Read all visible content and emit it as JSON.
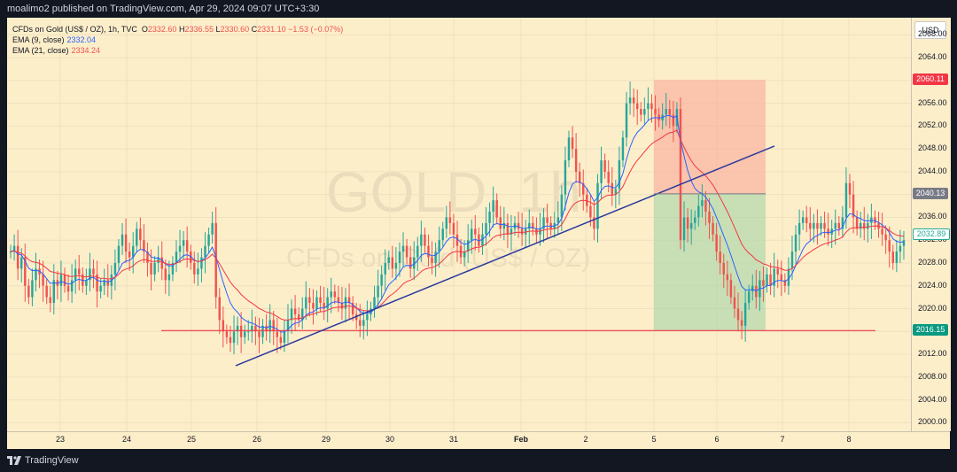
{
  "header": {
    "publish_text": "moalimo2 published on TradingView.com, Apr 29, 2024 09:07 UTC+3:30"
  },
  "legend": {
    "symbol": "CFDs on Gold (US$ / OZ), 1h, TVC",
    "o_label": "O",
    "o_value": "2332.60",
    "h_label": "H",
    "h_value": "2336.55",
    "l_label": "L",
    "l_value": "2330.60",
    "c_label": "C",
    "c_value": "2331.10",
    "change": "−1.53 (−0.07%)",
    "ema9_label": "EMA (9, close)",
    "ema9_value": "2332.04",
    "ema21_label": "EMA (21, close)",
    "ema21_value": "2334.24"
  },
  "currency_button": "USD",
  "watermark": {
    "ticker": "GOLD, 1h",
    "description": "CFDs on Gold (US$ / OZ)"
  },
  "price_axis": {
    "ticks": [
      "2068.00",
      "2064.00",
      "2060.00",
      "2056.00",
      "2052.00",
      "2048.00",
      "2044.00",
      "2040.00",
      "2036.00",
      "2032.00",
      "2028.00",
      "2024.00",
      "2020.00",
      "2016.00",
      "2012.00",
      "2008.00",
      "2004.00",
      "2000.00"
    ],
    "badges": [
      {
        "label": "2060.11",
        "color": "#f23645"
      },
      {
        "label": "2040.13",
        "color": "#787b86"
      },
      {
        "label": "2032.89",
        "color": "#22ab94"
      },
      {
        "label": "2016.15",
        "color": "#089981"
      }
    ]
  },
  "time_axis": {
    "ticks": [
      "23",
      "24",
      "25",
      "26",
      "29",
      "30",
      "31",
      "Feb",
      "2",
      "5",
      "6",
      "7",
      "8"
    ]
  },
  "footer": {
    "brand": "TradingView"
  },
  "colors": {
    "background": "#fdeeca",
    "up": "#26a69a",
    "down": "#ef5350",
    "ema9": "#2962ff",
    "ema21": "#f23645",
    "trendline": "#2b3a9e",
    "support": "#f23645",
    "stop_zone": "#f8a99a",
    "target_zone": "#a5d6a7"
  },
  "chart_data": {
    "type": "candlestick",
    "timeframe": "1h",
    "y_range": [
      1998.5,
      2071
    ],
    "annotations": {
      "support_level": 2016.15,
      "short_position": {
        "entry": 2040.13,
        "stop": 2060.11,
        "target": 2016.15
      },
      "trendline": {
        "from": 2010.0,
        "to": 2048.5
      }
    },
    "closes": [
      2030,
      2031,
      2027,
      2029,
      2024,
      2022,
      2025,
      2027,
      2026,
      2024,
      2022,
      2021,
      2025,
      2024,
      2026,
      2024,
      2023,
      2025,
      2027,
      2026,
      2024,
      2025,
      2027,
      2026,
      2023,
      2024,
      2025,
      2024,
      2026,
      2028,
      2031,
      2033,
      2030,
      2029,
      2031,
      2034,
      2032,
      2030,
      2028,
      2026,
      2028,
      2029,
      2027,
      2025,
      2026,
      2028,
      2030,
      2031,
      2032,
      2030,
      2028,
      2026,
      2027,
      2029,
      2031,
      2033,
      2035,
      2022,
      2018,
      2016,
      2015,
      2014,
      2016,
      2017,
      2015,
      2016,
      2016,
      2017,
      2016,
      2015,
      2017,
      2016,
      2018,
      2016,
      2015,
      2014,
      2016,
      2018,
      2020,
      2019,
      2018,
      2020,
      2022,
      2021,
      2020,
      2022,
      2021,
      2020,
      2022,
      2023,
      2022,
      2021,
      2020,
      2022,
      2021,
      2019,
      2018,
      2017,
      2018,
      2019,
      2020,
      2022,
      2024,
      2026,
      2028,
      2029,
      2027,
      2028,
      2030,
      2031,
      2029,
      2027,
      2029,
      2031,
      2033,
      2031,
      2029,
      2028,
      2030,
      2032,
      2034,
      2036,
      2035,
      2033,
      2031,
      2029,
      2030,
      2032,
      2034,
      2033,
      2031,
      2033,
      2035,
      2037,
      2039,
      2036,
      2034,
      2035,
      2033,
      2034,
      2035,
      2034,
      2033,
      2034,
      2035,
      2034,
      2033,
      2034,
      2036,
      2035,
      2034,
      2035,
      2036,
      2040,
      2046,
      2050,
      2048,
      2044,
      2042,
      2040,
      2038,
      2036,
      2034,
      2042,
      2046,
      2044,
      2042,
      2040,
      2041,
      2046,
      2050,
      2056,
      2057,
      2056,
      2055,
      2054,
      2055,
      2056,
      2055,
      2054,
      2053,
      2054,
      2055,
      2054,
      2052,
      2055,
      2032,
      2036,
      2034,
      2035,
      2036,
      2038,
      2039,
      2037,
      2035,
      2033,
      2030,
      2028,
      2026,
      2025,
      2022,
      2020,
      2018,
      2017,
      2021,
      2023,
      2024,
      2022,
      2025,
      2024,
      2026,
      2024,
      2027,
      2026,
      2025,
      2024,
      2027,
      2030,
      2033,
      2035,
      2036,
      2035,
      2034,
      2035,
      2034,
      2035,
      2034,
      2033,
      2034,
      2035,
      2034,
      2036,
      2042,
      2040,
      2036,
      2034,
      2035,
      2034,
      2035,
      2036,
      2035,
      2034,
      2033,
      2032,
      2030,
      2028,
      2030,
      2031,
      2032
    ]
  }
}
